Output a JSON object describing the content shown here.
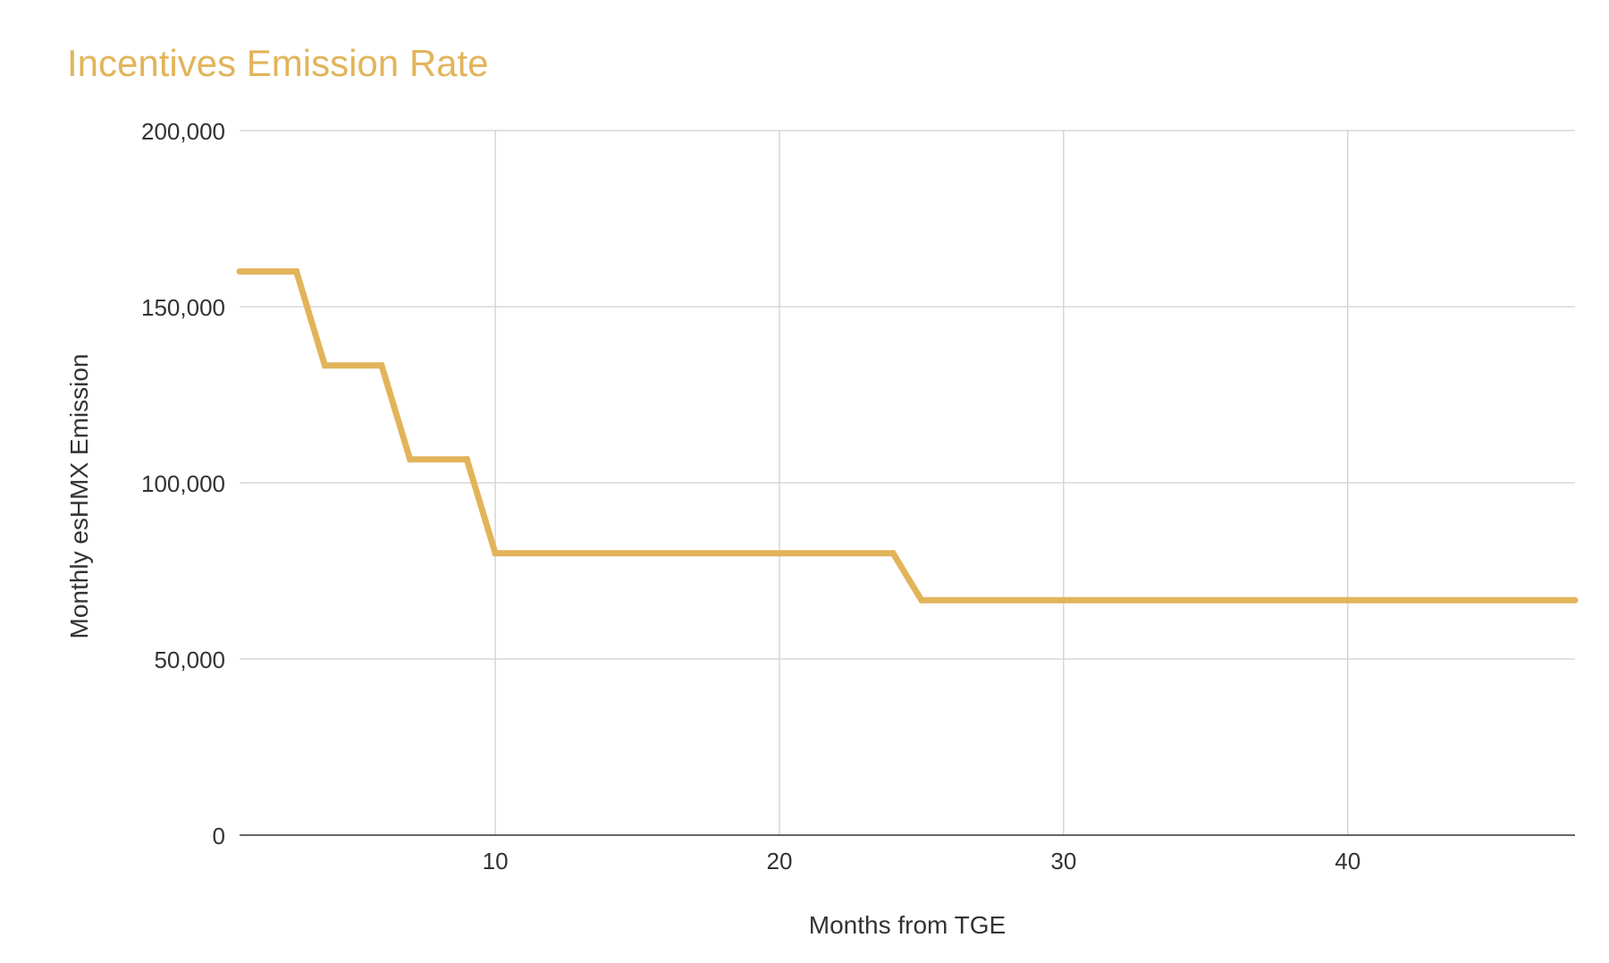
{
  "colors": {
    "title": "#e2b45a",
    "line": "#e2b45a",
    "grid": "#d0d0d0",
    "baseline": "#333333",
    "text": "#333333",
    "background": "#ffffff"
  },
  "chart_data": {
    "type": "line",
    "title": "Incentives Emission Rate",
    "xlabel": "Months from TGE",
    "ylabel": "Monthly esHMX Emission",
    "xlim": [
      1,
      48
    ],
    "ylim": [
      0,
      200000
    ],
    "xticks": [
      10,
      20,
      30,
      40
    ],
    "xtick_labels": [
      "10",
      "20",
      "30",
      "40"
    ],
    "yticks": [
      0,
      50000,
      100000,
      150000,
      200000
    ],
    "ytick_labels": [
      "0",
      "50,000",
      "100,000",
      "150,000",
      "200,000"
    ],
    "grid": true,
    "legend": "none",
    "series": [
      {
        "x": [
          1,
          3,
          4,
          6,
          7,
          9,
          10,
          24,
          25,
          48
        ],
        "y": [
          160000,
          160000,
          133333,
          133333,
          106667,
          106667,
          80000,
          80000,
          66667,
          66667
        ]
      }
    ]
  }
}
